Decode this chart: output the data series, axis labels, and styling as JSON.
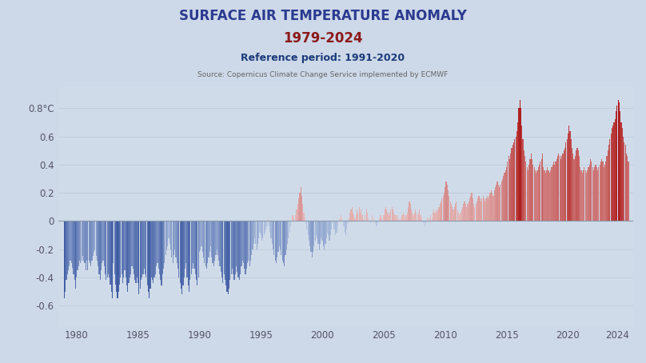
{
  "title_line1": "SURFACE AIR TEMPERATURE ANOMALY",
  "title_line2": "1979-2024",
  "subtitle": "Reference period: 1991-2020",
  "source": "Source: Copernicus Climate Change Service implemented by ECMWF",
  "title_color1": "#2B3A8F",
  "title_color2": "#8B1A1A",
  "subtitle_color": "#1a3a7a",
  "source_color": "#666666",
  "ylim": [
    -0.75,
    0.95
  ],
  "yticks": [
    -0.6,
    -0.4,
    -0.2,
    0,
    0.2,
    0.4,
    0.6,
    0.8
  ],
  "xticks": [
    1980,
    1985,
    1990,
    1995,
    2000,
    2005,
    2010,
    2015,
    2020,
    2024
  ],
  "bg_color": "#cdd8e8",
  "plot_bg_color": "#d0dbe9",
  "monthly_anomalies": [
    -0.55,
    -0.5,
    -0.42,
    -0.38,
    -0.35,
    -0.32,
    -0.28,
    -0.3,
    -0.33,
    -0.38,
    -0.42,
    -0.48,
    -0.4,
    -0.35,
    -0.32,
    -0.28,
    -0.3,
    -0.28,
    -0.25,
    -0.28,
    -0.3,
    -0.35,
    -0.28,
    -0.35,
    -0.28,
    -0.3,
    -0.32,
    -0.28,
    -0.25,
    -0.22,
    -0.2,
    -0.25,
    -0.28,
    -0.32,
    -0.38,
    -0.42,
    -0.35,
    -0.3,
    -0.28,
    -0.32,
    -0.38,
    -0.42,
    -0.4,
    -0.38,
    -0.4,
    -0.45,
    -0.5,
    -0.55,
    -0.3,
    -0.38,
    -0.45,
    -0.5,
    -0.55,
    -0.5,
    -0.45,
    -0.4,
    -0.38,
    -0.44,
    -0.4,
    -0.35,
    -0.4,
    -0.46,
    -0.5,
    -0.44,
    -0.4,
    -0.38,
    -0.32,
    -0.34,
    -0.38,
    -0.42,
    -0.44,
    -0.4,
    -0.44,
    -0.52,
    -0.48,
    -0.42,
    -0.4,
    -0.38,
    -0.34,
    -0.38,
    -0.4,
    -0.46,
    -0.5,
    -0.55,
    -0.48,
    -0.4,
    -0.42,
    -0.44,
    -0.4,
    -0.38,
    -0.32,
    -0.3,
    -0.34,
    -0.38,
    -0.42,
    -0.46,
    -0.38,
    -0.34,
    -0.3,
    -0.24,
    -0.2,
    -0.18,
    -0.12,
    -0.16,
    -0.2,
    -0.26,
    -0.3,
    -0.24,
    -0.2,
    -0.26,
    -0.3,
    -0.34,
    -0.4,
    -0.44,
    -0.48,
    -0.52,
    -0.46,
    -0.4,
    -0.34,
    -0.3,
    -0.4,
    -0.46,
    -0.5,
    -0.42,
    -0.38,
    -0.34,
    -0.3,
    -0.34,
    -0.38,
    -0.42,
    -0.46,
    -0.4,
    -0.22,
    -0.2,
    -0.18,
    -0.22,
    -0.26,
    -0.3,
    -0.32,
    -0.34,
    -0.3,
    -0.26,
    -0.22,
    -0.18,
    -0.26,
    -0.3,
    -0.32,
    -0.28,
    -0.24,
    -0.2,
    -0.24,
    -0.28,
    -0.32,
    -0.36,
    -0.4,
    -0.44,
    -0.38,
    -0.42,
    -0.46,
    -0.5,
    -0.52,
    -0.48,
    -0.42,
    -0.38,
    -0.34,
    -0.38,
    -0.42,
    -0.38,
    -0.32,
    -0.36,
    -0.4,
    -0.42,
    -0.38,
    -0.32,
    -0.28,
    -0.3,
    -0.34,
    -0.38,
    -0.34,
    -0.3,
    -0.28,
    -0.32,
    -0.28,
    -0.24,
    -0.2,
    -0.16,
    -0.12,
    -0.16,
    -0.2,
    -0.16,
    -0.12,
    -0.08,
    -0.1,
    -0.14,
    -0.12,
    -0.1,
    -0.08,
    -0.06,
    -0.04,
    0.02,
    -0.04,
    -0.08,
    -0.12,
    -0.16,
    -0.2,
    -0.24,
    -0.28,
    -0.3,
    -0.26,
    -0.22,
    -0.18,
    -0.2,
    -0.24,
    -0.28,
    -0.3,
    -0.32,
    -0.24,
    -0.2,
    -0.16,
    -0.12,
    -0.08,
    -0.04,
    0.0,
    0.04,
    0.02,
    0.0,
    0.04,
    0.08,
    0.12,
    0.16,
    0.2,
    0.24,
    0.18,
    0.12,
    0.06,
    0.02,
    -0.02,
    -0.06,
    -0.1,
    -0.14,
    -0.18,
    -0.22,
    -0.26,
    -0.22,
    -0.18,
    -0.14,
    -0.1,
    -0.12,
    -0.16,
    -0.2,
    -0.16,
    -0.12,
    -0.14,
    -0.18,
    -0.2,
    -0.16,
    -0.12,
    -0.08,
    -0.1,
    -0.14,
    -0.1,
    -0.06,
    -0.02,
    -0.06,
    -0.06,
    -0.1,
    -0.08,
    -0.04,
    0.0,
    0.02,
    0.04,
    0.02,
    0.0,
    -0.04,
    -0.08,
    -0.1,
    -0.06,
    -0.02,
    0.02,
    0.06,
    0.08,
    0.1,
    0.06,
    0.04,
    0.02,
    0.04,
    0.08,
    0.06,
    0.1,
    0.06,
    0.08,
    0.04,
    0.02,
    0.0,
    0.04,
    0.08,
    0.06,
    0.02,
    0.0,
    -0.02,
    0.0,
    0.04,
    0.02,
    0.0,
    -0.02,
    -0.04,
    -0.02,
    0.0,
    0.02,
    0.04,
    0.02,
    0.0,
    0.04,
    0.08,
    0.1,
    0.08,
    0.06,
    0.04,
    0.06,
    0.08,
    0.1,
    0.08,
    0.06,
    0.04,
    0.04,
    0.02,
    0.04,
    0.02,
    0.0,
    0.02,
    0.04,
    0.06,
    0.04,
    0.02,
    0.04,
    0.06,
    0.1,
    0.14,
    0.12,
    0.08,
    0.06,
    0.04,
    0.06,
    0.08,
    0.06,
    0.04,
    0.06,
    0.08,
    0.04,
    0.02,
    0.0,
    -0.02,
    -0.04,
    -0.02,
    0.0,
    0.02,
    0.0,
    0.02,
    0.04,
    0.02,
    0.06,
    0.08,
    0.06,
    0.08,
    0.06,
    0.08,
    0.1,
    0.12,
    0.14,
    0.16,
    0.18,
    0.2,
    0.24,
    0.28,
    0.26,
    0.22,
    0.18,
    0.14,
    0.12,
    0.1,
    0.08,
    0.1,
    0.12,
    0.14,
    0.08,
    0.06,
    0.04,
    0.06,
    0.08,
    0.1,
    0.12,
    0.14,
    0.12,
    0.1,
    0.12,
    0.14,
    0.16,
    0.18,
    0.2,
    0.16,
    0.12,
    0.1,
    0.12,
    0.14,
    0.16,
    0.18,
    0.16,
    0.14,
    0.16,
    0.18,
    0.16,
    0.14,
    0.16,
    0.18,
    0.16,
    0.18,
    0.2,
    0.22,
    0.2,
    0.18,
    0.22,
    0.24,
    0.26,
    0.28,
    0.26,
    0.24,
    0.26,
    0.28,
    0.3,
    0.32,
    0.34,
    0.36,
    0.38,
    0.42,
    0.46,
    0.44,
    0.48,
    0.52,
    0.54,
    0.56,
    0.58,
    0.6,
    0.64,
    0.7,
    0.8,
    0.86,
    0.8,
    0.68,
    0.58,
    0.5,
    0.46,
    0.42,
    0.38,
    0.36,
    0.4,
    0.44,
    0.48,
    0.44,
    0.4,
    0.38,
    0.36,
    0.34,
    0.36,
    0.38,
    0.4,
    0.42,
    0.44,
    0.48,
    0.38,
    0.36,
    0.34,
    0.36,
    0.38,
    0.36,
    0.34,
    0.36,
    0.38,
    0.4,
    0.42,
    0.4,
    0.42,
    0.44,
    0.46,
    0.48,
    0.46,
    0.44,
    0.46,
    0.48,
    0.5,
    0.52,
    0.56,
    0.58,
    0.62,
    0.68,
    0.64,
    0.58,
    0.52,
    0.48,
    0.44,
    0.46,
    0.5,
    0.52,
    0.5,
    0.46,
    0.38,
    0.36,
    0.34,
    0.36,
    0.38,
    0.36,
    0.34,
    0.36,
    0.38,
    0.4,
    0.44,
    0.42,
    0.38,
    0.36,
    0.38,
    0.4,
    0.38,
    0.36,
    0.38,
    0.4,
    0.42,
    0.44,
    0.42,
    0.38,
    0.4,
    0.42,
    0.46,
    0.5,
    0.54,
    0.58,
    0.62,
    0.66,
    0.68,
    0.7,
    0.72,
    0.78,
    0.82,
    0.86,
    0.84,
    0.78,
    0.7,
    0.66,
    0.6,
    0.56,
    0.54,
    0.48,
    0.46,
    0.42
  ]
}
